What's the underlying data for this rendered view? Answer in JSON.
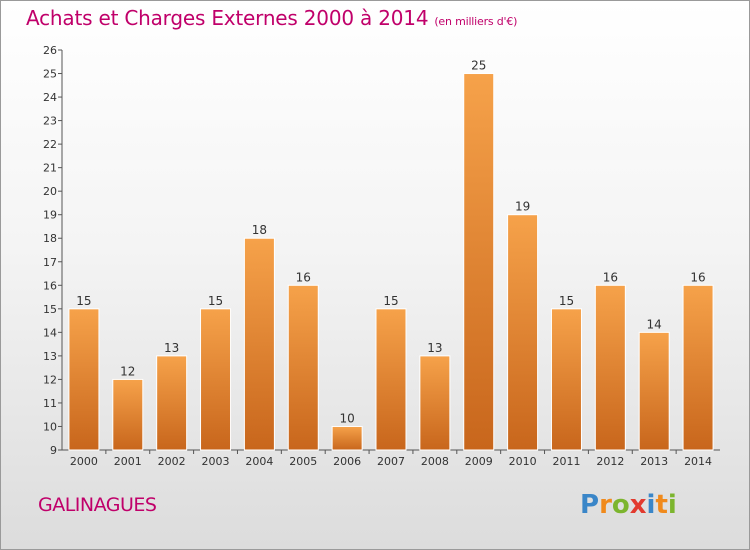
{
  "title": "Achats et Charges Externes 2000 à 2014",
  "unit": "(en milliers d'€)",
  "commune": "GALINAGUES",
  "logo": {
    "letters": [
      "P",
      "r",
      "o",
      "x",
      "i",
      "t",
      "i"
    ],
    "colors": [
      "#3a86c8",
      "#f08a1c",
      "#7cb52e",
      "#e23a2e",
      "#3a86c8",
      "#f08a1c",
      "#7cb52e"
    ]
  },
  "chart_data": {
    "type": "bar",
    "categories": [
      "2000",
      "2001",
      "2002",
      "2003",
      "2004",
      "2005",
      "2006",
      "2007",
      "2008",
      "2009",
      "2010",
      "2011",
      "2012",
      "2013",
      "2014"
    ],
    "values": [
      15,
      12,
      13,
      15,
      18,
      16,
      10,
      15,
      13,
      25,
      19,
      15,
      16,
      14,
      16
    ],
    "ylim": [
      9,
      26
    ],
    "yticks": [
      9,
      10,
      11,
      12,
      13,
      14,
      15,
      16,
      17,
      18,
      19,
      20,
      21,
      22,
      23,
      24,
      25,
      26
    ],
    "bar_color_top": "#f6a24a",
    "bar_color_bottom": "#c8661c",
    "grid": false
  }
}
